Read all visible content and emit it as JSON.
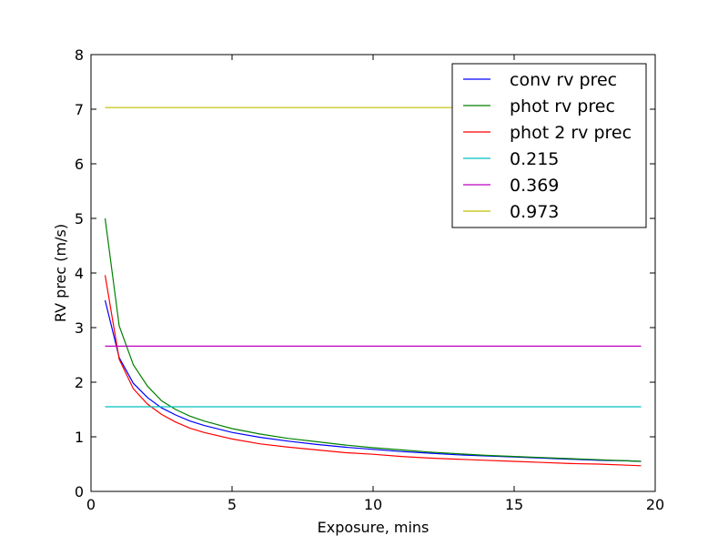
{
  "chart_data": {
    "type": "line",
    "title": "",
    "xlabel": "Exposure, mins",
    "ylabel": "RV prec (m/s)",
    "xlim": [
      0,
      20
    ],
    "ylim": [
      0,
      8
    ],
    "xticks": [
      0,
      5,
      10,
      15,
      20
    ],
    "yticks": [
      0,
      1,
      2,
      3,
      4,
      5,
      6,
      7,
      8
    ],
    "grid": false,
    "legend_position": "top-right",
    "series": [
      {
        "name": "conv rv prec",
        "color": "#0000ff",
        "x": [
          0.5,
          1,
          1.5,
          2,
          2.5,
          3,
          3.5,
          4,
          5,
          6,
          7,
          8,
          9,
          10,
          11,
          12,
          13,
          14,
          15,
          16,
          17,
          18,
          19,
          19.5
        ],
        "y": [
          3.5,
          2.45,
          1.98,
          1.72,
          1.53,
          1.4,
          1.29,
          1.21,
          1.08,
          0.99,
          0.92,
          0.86,
          0.81,
          0.77,
          0.73,
          0.7,
          0.67,
          0.65,
          0.63,
          0.61,
          0.59,
          0.57,
          0.56,
          0.55
        ]
      },
      {
        "name": "phot rv prec",
        "color": "#008000",
        "x": [
          0.5,
          1,
          1.5,
          2,
          2.5,
          3,
          3.5,
          4,
          5,
          6,
          7,
          8,
          9,
          10,
          11,
          12,
          13,
          14,
          15,
          16,
          17,
          18,
          19,
          19.5
        ],
        "y": [
          5.0,
          3.03,
          2.32,
          1.93,
          1.66,
          1.5,
          1.38,
          1.29,
          1.15,
          1.05,
          0.97,
          0.91,
          0.85,
          0.8,
          0.76,
          0.72,
          0.69,
          0.66,
          0.64,
          0.62,
          0.6,
          0.58,
          0.56,
          0.55
        ]
      },
      {
        "name": "phot 2 rv prec",
        "color": "#ff0000",
        "x": [
          0.5,
          1,
          1.5,
          2,
          2.5,
          3,
          3.5,
          4,
          5,
          6,
          7,
          8,
          9,
          10,
          11,
          12,
          13,
          14,
          15,
          16,
          17,
          18,
          19,
          19.5
        ],
        "y": [
          3.96,
          2.42,
          1.88,
          1.6,
          1.41,
          1.27,
          1.16,
          1.08,
          0.96,
          0.87,
          0.81,
          0.76,
          0.71,
          0.68,
          0.64,
          0.61,
          0.59,
          0.57,
          0.55,
          0.53,
          0.51,
          0.5,
          0.48,
          0.47
        ]
      },
      {
        "name": "0.215",
        "color": "#00bfbf",
        "x": [
          0.5,
          19.5
        ],
        "y": [
          1.55,
          1.55
        ]
      },
      {
        "name": "0.369",
        "color": "#bf00bf",
        "x": [
          0.5,
          19.5
        ],
        "y": [
          2.66,
          2.66
        ]
      },
      {
        "name": "0.973",
        "color": "#bfbf00",
        "x": [
          0.5,
          19.5
        ],
        "y": [
          7.03,
          7.03
        ]
      }
    ]
  }
}
